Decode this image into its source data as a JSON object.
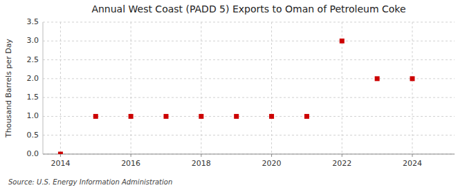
{
  "chart_data": {
    "type": "scatter",
    "title": "Annual West Coast (PADD 5) Exports to Oman of Petroleum Coke",
    "y_label": "Thousand Barrels per Day",
    "annotations": [
      "Source: U.S. Energy Information Administration"
    ],
    "x": [
      2014,
      2015,
      2016,
      2017,
      2018,
      2019,
      2020,
      2021,
      2022,
      2023,
      2024
    ],
    "values": [
      0.0,
      1.0,
      1.0,
      1.0,
      1.0,
      1.0,
      1.0,
      1.0,
      3.0,
      2.0,
      2.0
    ],
    "xlim": [
      2013.5,
      2025.2
    ],
    "ylim": [
      0.0,
      3.5
    ],
    "xticks": [
      2014,
      2016,
      2018,
      2020,
      2022,
      2024
    ],
    "yticks": [
      {
        "value": 0.0,
        "label": "0.0"
      },
      0.5,
      {
        "value": 1.0,
        "label": "1.0"
      },
      1.5,
      {
        "value": 2.0,
        "label": "2.0"
      },
      2.5,
      {
        "value": 3.0,
        "label": "3.0"
      },
      3.5
    ],
    "color": "#cc0000",
    "marker": "square",
    "grid": true
  }
}
